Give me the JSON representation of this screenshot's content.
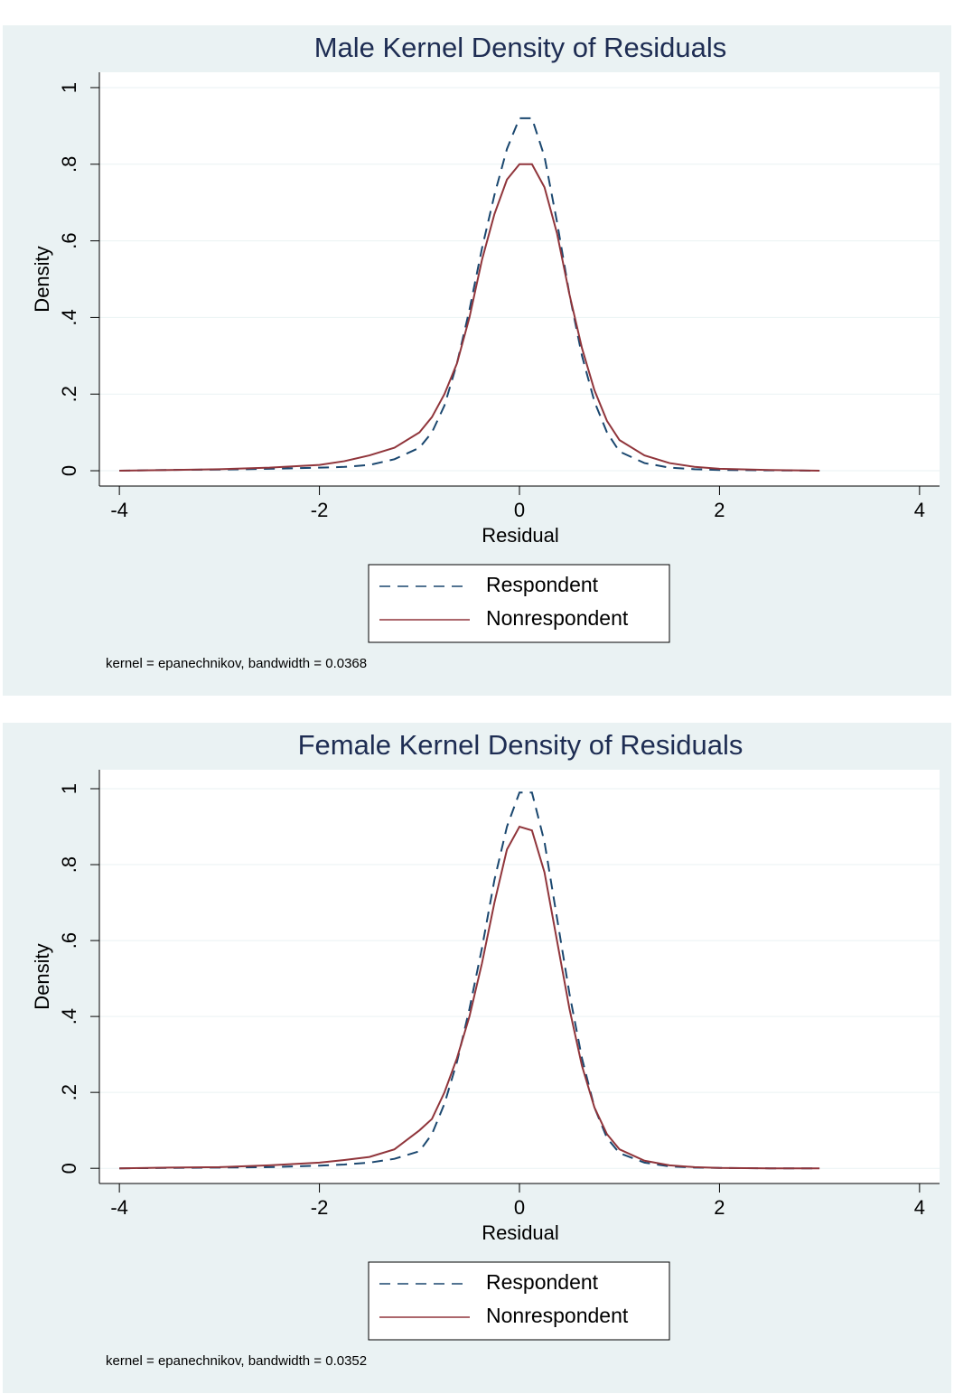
{
  "chart_data": [
    {
      "type": "line",
      "title": "Male Kernel Density of Residuals",
      "xlabel": "Residual",
      "ylabel": "Density",
      "note": "kernel = epanechnikov, bandwidth = 0.0368",
      "x": [
        -4,
        -3.5,
        -3,
        -2.5,
        -2,
        -1.75,
        -1.5,
        -1.25,
        -1,
        -0.875,
        -0.75,
        -0.625,
        -0.5,
        -0.375,
        -0.25,
        -0.125,
        0,
        0.125,
        0.25,
        0.375,
        0.5,
        0.625,
        0.75,
        0.875,
        1,
        1.25,
        1.5,
        1.75,
        2,
        2.5,
        3
      ],
      "series": [
        {
          "name": "Respondent",
          "color": "#1a476f",
          "dashed": true,
          "values": [
            0,
            0.002,
            0.003,
            0.005,
            0.008,
            0.01,
            0.015,
            0.03,
            0.06,
            0.1,
            0.17,
            0.28,
            0.42,
            0.58,
            0.72,
            0.84,
            0.92,
            0.92,
            0.82,
            0.65,
            0.46,
            0.3,
            0.18,
            0.1,
            0.05,
            0.02,
            0.008,
            0.004,
            0.002,
            0.001,
            0
          ]
        },
        {
          "name": "Nonrespondent",
          "color": "#90353b",
          "dashed": false,
          "values": [
            0,
            0.002,
            0.004,
            0.008,
            0.015,
            0.025,
            0.04,
            0.06,
            0.1,
            0.14,
            0.2,
            0.28,
            0.4,
            0.55,
            0.67,
            0.76,
            0.8,
            0.8,
            0.74,
            0.62,
            0.46,
            0.32,
            0.21,
            0.13,
            0.08,
            0.04,
            0.02,
            0.01,
            0.005,
            0.002,
            0
          ]
        }
      ],
      "xlim": [
        -4.2,
        4.2
      ],
      "xticks": [
        -4,
        -2,
        0,
        2,
        4
      ],
      "ylim": [
        -0.04,
        1.04
      ],
      "yticks": [
        0,
        {
          "value": 0.2,
          "label": ".2"
        },
        {
          "value": 0.4,
          "label": ".4"
        },
        {
          "value": 0.6,
          "label": ".6"
        },
        {
          "value": 0.8,
          "label": ".8"
        },
        1
      ],
      "grid": true
    },
    {
      "type": "line",
      "title": "Female Kernel Density of Residuals",
      "xlabel": "Residual",
      "ylabel": "Density",
      "note": "kernel = epanechnikov, bandwidth = 0.0352",
      "x": [
        -4,
        -3.5,
        -3,
        -2.5,
        -2,
        -1.75,
        -1.5,
        -1.25,
        -1,
        -0.875,
        -0.75,
        -0.625,
        -0.5,
        -0.375,
        -0.25,
        -0.125,
        0,
        0.125,
        0.25,
        0.375,
        0.5,
        0.625,
        0.75,
        0.875,
        1,
        1.25,
        1.5,
        1.75,
        2,
        2.5,
        3
      ],
      "series": [
        {
          "name": "Respondent",
          "color": "#1a476f",
          "dashed": true,
          "values": [
            0,
            0.001,
            0.002,
            0.003,
            0.007,
            0.01,
            0.015,
            0.025,
            0.045,
            0.09,
            0.17,
            0.28,
            0.42,
            0.58,
            0.76,
            0.9,
            0.99,
            0.99,
            0.86,
            0.66,
            0.46,
            0.29,
            0.16,
            0.08,
            0.04,
            0.015,
            0.005,
            0.002,
            0.001,
            0,
            0
          ]
        },
        {
          "name": "Nonrespondent",
          "color": "#90353b",
          "dashed": false,
          "values": [
            0,
            0.002,
            0.003,
            0.008,
            0.015,
            0.022,
            0.03,
            0.05,
            0.1,
            0.13,
            0.2,
            0.29,
            0.4,
            0.54,
            0.7,
            0.84,
            0.9,
            0.89,
            0.78,
            0.6,
            0.42,
            0.27,
            0.16,
            0.09,
            0.05,
            0.02,
            0.008,
            0.003,
            0.001,
            0,
            0
          ]
        }
      ],
      "xlim": [
        -4.2,
        4.2
      ],
      "xticks": [
        -4,
        -2,
        0,
        2,
        4
      ],
      "ylim": [
        -0.04,
        1.05
      ],
      "yticks": [
        0,
        {
          "value": 0.2,
          "label": ".2"
        },
        {
          "value": 0.4,
          "label": ".4"
        },
        {
          "value": 0.6,
          "label": ".6"
        },
        {
          "value": 0.8,
          "label": ".8"
        },
        1
      ],
      "grid": true
    }
  ]
}
